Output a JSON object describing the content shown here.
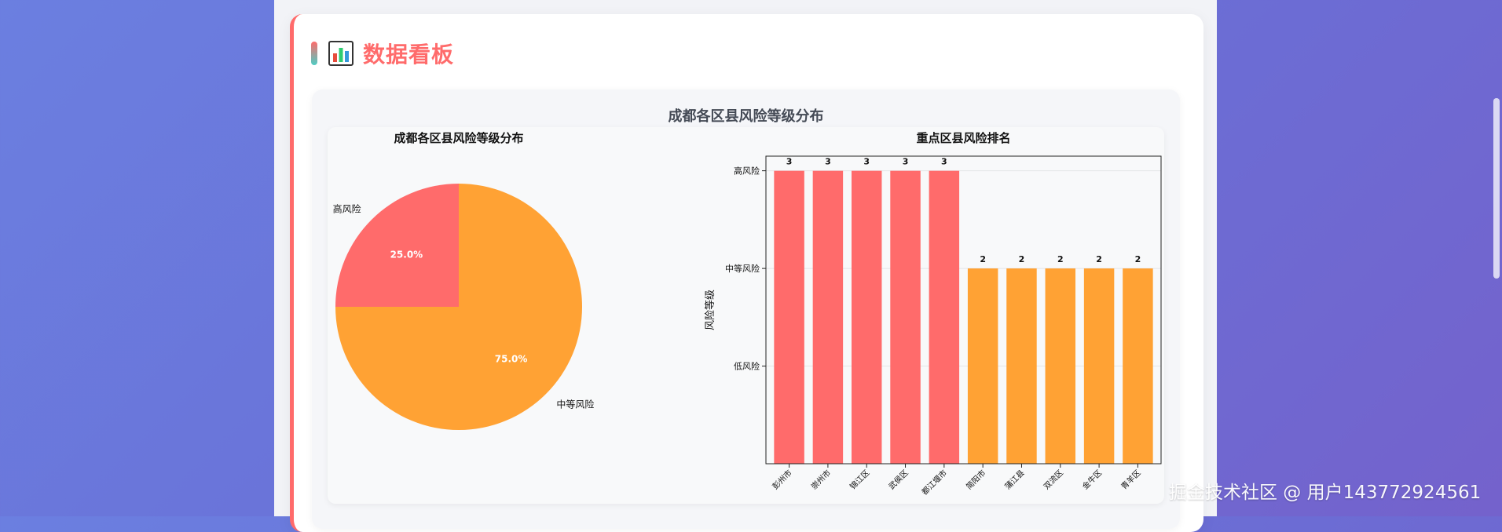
{
  "header": {
    "title": "数据看板",
    "icon": "bar-chart-icon"
  },
  "figure": {
    "suptitle": "成都各区县风险等级分布"
  },
  "watermark": "掘金技术社区 @ 用户143772924561",
  "colors": {
    "high": "#ff6b6b",
    "medium": "#ffa234",
    "accent": "#ff6b6b"
  },
  "chart_data": [
    {
      "type": "pie",
      "title": "成都各区县风险等级分布",
      "labels": [
        "高风险",
        "中等风险"
      ],
      "values": [
        25.0,
        75.0
      ],
      "pct_labels": [
        "25.0%",
        "75.0%"
      ],
      "colors": [
        "#ff6b6b",
        "#ffa234"
      ]
    },
    {
      "type": "bar",
      "title": "重点区县风险排名",
      "ylabel": "风险等级",
      "xlabel": "",
      "categories": [
        "彭州市",
        "崇州市",
        "锦江区",
        "武侯区",
        "都江堰市",
        "简阳市",
        "蒲江县",
        "双流区",
        "金牛区",
        "青羊区"
      ],
      "values": [
        3,
        3,
        3,
        3,
        3,
        2,
        2,
        2,
        2,
        2
      ],
      "ylim": [
        0,
        3.15
      ],
      "yticks": [
        1,
        2,
        3
      ],
      "ytick_labels": [
        "低风险",
        "中等风险",
        "高风险"
      ],
      "grid": true,
      "colors_by_value": {
        "3": "#ff6b6b",
        "2": "#ffa234"
      }
    }
  ]
}
